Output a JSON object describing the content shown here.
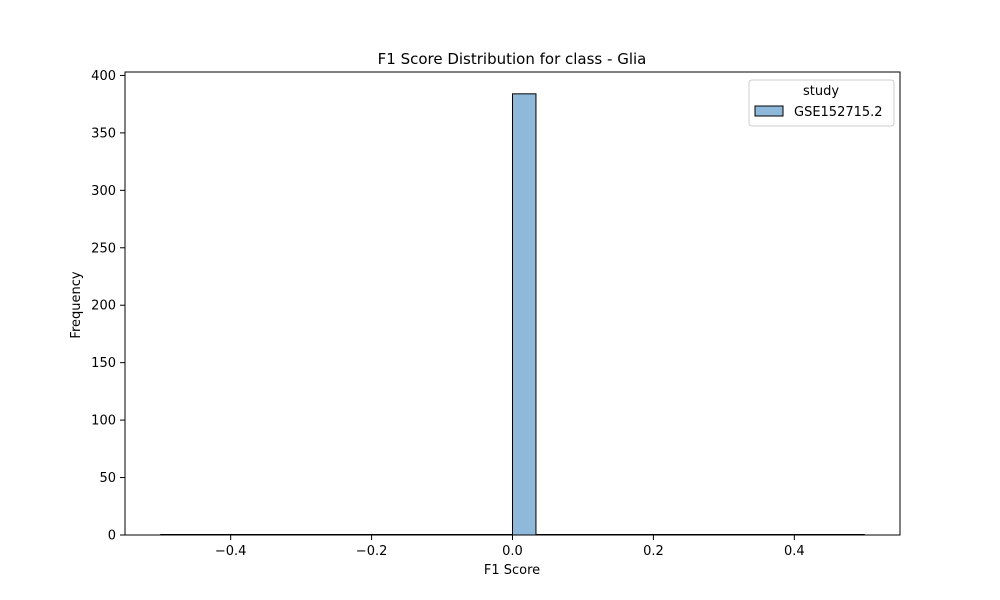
{
  "chart_data": {
    "type": "bar",
    "title": "F1 Score Distribution for class - Glia",
    "xlabel": "F1 Score",
    "ylabel": "Frequency",
    "xlim": [
      -0.55,
      0.55
    ],
    "ylim": [
      0,
      403
    ],
    "xticks": [
      -0.4,
      -0.2,
      0.0,
      0.2,
      0.4
    ],
    "xtick_labels": [
      "−0.4",
      "−0.2",
      "0.0",
      "0.2",
      "0.4"
    ],
    "yticks": [
      0,
      50,
      100,
      150,
      200,
      250,
      300,
      350,
      400
    ],
    "ytick_labels": [
      "0",
      "50",
      "100",
      "150",
      "200",
      "250",
      "300",
      "350",
      "400"
    ],
    "legend": {
      "title": "study",
      "placement": "top-right",
      "entries": [
        "GSE152715.2"
      ]
    },
    "series": [
      {
        "name": "GSE152715.2",
        "color": "#8fb9da",
        "edge_color": "#000000",
        "bins": [
          {
            "x0": 0.0,
            "x1": 0.0333,
            "count": 384
          }
        ],
        "baseline_range": [
          -0.5,
          0.5
        ]
      }
    ]
  }
}
